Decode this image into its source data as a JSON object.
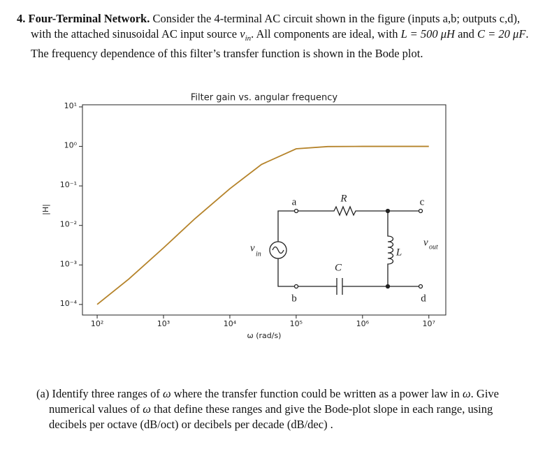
{
  "problem": {
    "number": "4.",
    "heading": "Four-Terminal Network.",
    "text1": "Consider the 4-terminal AC circuit shown in the figure (inputs a,b; outputs c,d), with the attached sinusoidal AC input source",
    "source_var": "v",
    "source_sub": "in",
    "text2": ". All components are ideal, with",
    "inductance": "L = 500 μH",
    "text3": "and",
    "capacitance": "C = 20 μF",
    "text4": ". The frequency dependence of this filter’s transfer function is shown in the Bode plot."
  },
  "circuit": {
    "a": "a",
    "b": "b",
    "c": "c",
    "d": "d",
    "R": "R",
    "C": "C",
    "L": "L",
    "vin": "v",
    "vin_sub": "in",
    "vout": "v",
    "vout_sub": "out"
  },
  "chart_data": {
    "type": "line",
    "title": "Filter gain vs. angular frequency",
    "x_label": "ω (rad/s)",
    "y_label": "|H|",
    "log_x": true,
    "log_y": true,
    "color": "#b5832a",
    "x": [
      100,
      300,
      1000,
      3000,
      10000,
      30000,
      100000,
      300000,
      1000000,
      10000000
    ],
    "values": [
      0.0001,
      0.00044,
      0.0027,
      0.015,
      0.085,
      0.35,
      0.87,
      0.99,
      1,
      1
    ],
    "xlim": [
      60,
      18000000
    ],
    "ylim": [
      5.4e-05,
      11.3
    ],
    "xticks": [
      {
        "value": 100,
        "label": "10²"
      },
      {
        "value": 1000,
        "label": "10³"
      },
      {
        "value": 10000,
        "label": "10⁴"
      },
      {
        "value": 100000,
        "label": "10⁵"
      },
      {
        "value": 1000000,
        "label": "10⁶"
      },
      {
        "value": 10000000,
        "label": "10⁷"
      }
    ],
    "yticks": [
      {
        "value": 10,
        "label": "10¹"
      },
      {
        "value": 1,
        "label": "10⁰"
      },
      {
        "value": 0.1,
        "label": "10⁻¹"
      },
      {
        "value": 0.01,
        "label": "10⁻²"
      },
      {
        "value": 0.001,
        "label": "10⁻³"
      },
      {
        "value": 0.0001,
        "label": "10⁻⁴"
      }
    ]
  },
  "part_a": {
    "label": "(a)",
    "t1": "Identify three ranges of",
    "w1": "ω",
    "t2": "where the transfer function could be written as a power law in",
    "w2": "ω",
    "t3": ". Give numerical values of",
    "w3": "ω",
    "t4": "that define these ranges and give the Bode-plot slope in each range, using decibels per octave (dB/oct) or decibels per decade (dB/dec) ."
  }
}
